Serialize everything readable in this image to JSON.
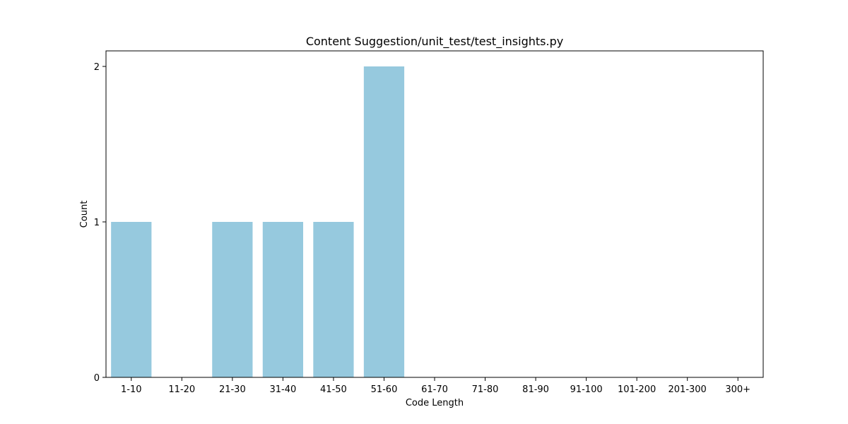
{
  "chart_data": {
    "type": "bar",
    "title": "Content Suggestion/unit_test/test_insights.py",
    "xlabel": "Code Length",
    "ylabel": "Count",
    "categories": [
      "1-10",
      "11-20",
      "21-30",
      "31-40",
      "41-50",
      "51-60",
      "61-70",
      "71-80",
      "81-90",
      "91-100",
      "101-200",
      "201-300",
      "300+"
    ],
    "values": [
      1,
      0,
      1,
      1,
      1,
      2,
      0,
      0,
      0,
      0,
      0,
      0,
      0
    ],
    "ylim": [
      0,
      2.1
    ],
    "yticks": [
      0,
      1,
      2
    ],
    "bar_color": "#96c9de",
    "grid": false,
    "legend": "none"
  }
}
